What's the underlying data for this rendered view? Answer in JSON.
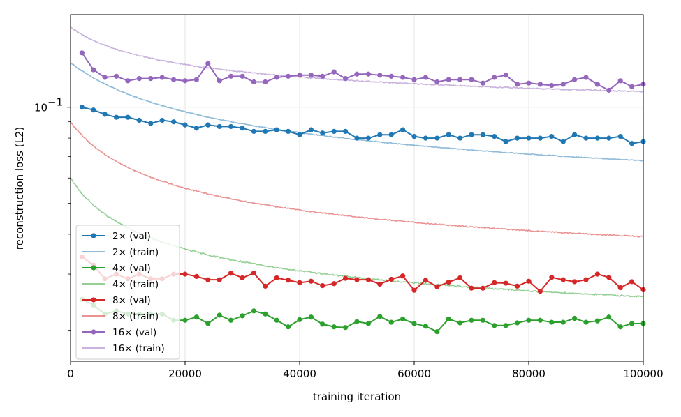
{
  "chart_data": {
    "type": "line",
    "title": "",
    "xlabel": "training iteration",
    "ylabel": "reconstruction loss (L2)",
    "xlim": [
      0,
      100000
    ],
    "ylim": [
      0.016,
      0.195
    ],
    "yscale": "log",
    "grid": true,
    "legend_position": "lower-left",
    "x_ticks": [
      0,
      20000,
      40000,
      60000,
      80000,
      100000
    ],
    "x_tick_labels": [
      "0",
      "20000",
      "40000",
      "60000",
      "80000",
      "100000"
    ],
    "y_major_ticks": [
      0.1
    ],
    "y_major_tick_labels": [
      "10",
      "−1"
    ],
    "y_minor_ticks": [
      0.02,
      0.03,
      0.04,
      0.05,
      0.06,
      0.07,
      0.08,
      0.09
    ],
    "colors": {
      "2x": "#1f77b4",
      "4x": "#2ca02c",
      "8x": "#d62728",
      "16x": "#9467bd"
    },
    "val_x": [
      2000,
      4000,
      6000,
      8000,
      10000,
      12000,
      14000,
      16000,
      18000,
      20000,
      22000,
      24000,
      26000,
      28000,
      30000,
      32000,
      34000,
      36000,
      38000,
      40000,
      42000,
      44000,
      46000,
      48000,
      50000,
      52000,
      54000,
      56000,
      58000,
      60000,
      62000,
      64000,
      66000,
      68000,
      70000,
      72000,
      74000,
      76000,
      78000,
      80000,
      82000,
      84000,
      86000,
      88000,
      90000,
      92000,
      94000,
      96000,
      98000,
      100000
    ],
    "series": [
      {
        "name": "2× (val)",
        "group": "2x",
        "kind": "val",
        "values": [
          0.1,
          0.098,
          0.095,
          0.093,
          0.093,
          0.091,
          0.089,
          0.091,
          0.09,
          0.088,
          0.086,
          0.088,
          0.087,
          0.087,
          0.086,
          0.084,
          0.084,
          0.085,
          0.084,
          0.082,
          0.085,
          0.083,
          0.084,
          0.084,
          0.08,
          0.08,
          0.082,
          0.082,
          0.085,
          0.081,
          0.08,
          0.08,
          0.082,
          0.08,
          0.082,
          0.082,
          0.081,
          0.078,
          0.08,
          0.08,
          0.08,
          0.081,
          0.078,
          0.082,
          0.08,
          0.08,
          0.08,
          0.081,
          0.077,
          0.078
        ]
      },
      {
        "name": "2× (train)",
        "group": "2x",
        "kind": "train",
        "start": 0.138,
        "end": 0.068,
        "knee": 12000,
        "noise": 0.003
      },
      {
        "name": "4× (val)",
        "group": "4x",
        "kind": "val",
        "values": [
          0.025,
          0.024,
          0.0225,
          0.023,
          0.0225,
          0.0225,
          0.0225,
          0.0225,
          0.0215,
          0.0215,
          0.022,
          0.021,
          0.0223,
          0.0215,
          0.0222,
          0.023,
          0.0225,
          0.0215,
          0.0205,
          0.0216,
          0.022,
          0.0209,
          0.0205,
          0.0204,
          0.0213,
          0.021,
          0.0221,
          0.0212,
          0.0217,
          0.021,
          0.0206,
          0.0198,
          0.0217,
          0.0211,
          0.0215,
          0.0215,
          0.0207,
          0.0207,
          0.0211,
          0.0215,
          0.0215,
          0.0212,
          0.0212,
          0.0218,
          0.0212,
          0.0214,
          0.022,
          0.0205,
          0.021,
          0.021
        ]
      },
      {
        "name": "4× (train)",
        "group": "4x",
        "kind": "train",
        "start": 0.06,
        "end": 0.0255,
        "knee": 6000,
        "noise": 0.005
      },
      {
        "name": "8× (val)",
        "group": "8x",
        "kind": "val",
        "values": [
          0.034,
          0.032,
          0.029,
          0.03,
          0.029,
          0.03,
          0.029,
          0.029,
          0.03,
          0.03,
          0.0295,
          0.0288,
          0.0288,
          0.0302,
          0.0292,
          0.0302,
          0.0275,
          0.0292,
          0.0287,
          0.0282,
          0.0285,
          0.0276,
          0.028,
          0.0291,
          0.0288,
          0.0288,
          0.0279,
          0.0289,
          0.0296,
          0.0267,
          0.0287,
          0.0274,
          0.0283,
          0.0292,
          0.0271,
          0.0271,
          0.0282,
          0.0281,
          0.0275,
          0.0285,
          0.0265,
          0.0293,
          0.0288,
          0.0284,
          0.0288,
          0.03,
          0.0293,
          0.0272,
          0.0284,
          0.0268
        ]
      },
      {
        "name": "8× (train)",
        "group": "8x",
        "kind": "train",
        "start": 0.09,
        "end": 0.0393,
        "knee": 7000,
        "noise": 0.004
      },
      {
        "name": "16× (val)",
        "group": "16x",
        "kind": "val",
        "values": [
          0.148,
          0.131,
          0.124,
          0.125,
          0.121,
          0.123,
          0.123,
          0.124,
          0.122,
          0.121,
          0.122,
          0.137,
          0.121,
          0.125,
          0.125,
          0.12,
          0.12,
          0.124,
          0.125,
          0.126,
          0.126,
          0.125,
          0.129,
          0.123,
          0.127,
          0.127,
          0.126,
          0.125,
          0.124,
          0.122,
          0.124,
          0.12,
          0.122,
          0.122,
          0.122,
          0.119,
          0.124,
          0.126,
          0.118,
          0.119,
          0.118,
          0.117,
          0.118,
          0.122,
          0.124,
          0.118,
          0.113,
          0.121,
          0.116,
          0.118
        ]
      },
      {
        "name": "16× (train)",
        "group": "16x",
        "kind": "train",
        "start": 0.178,
        "end": 0.112,
        "knee": 9000,
        "noise": 0.004
      }
    ]
  }
}
